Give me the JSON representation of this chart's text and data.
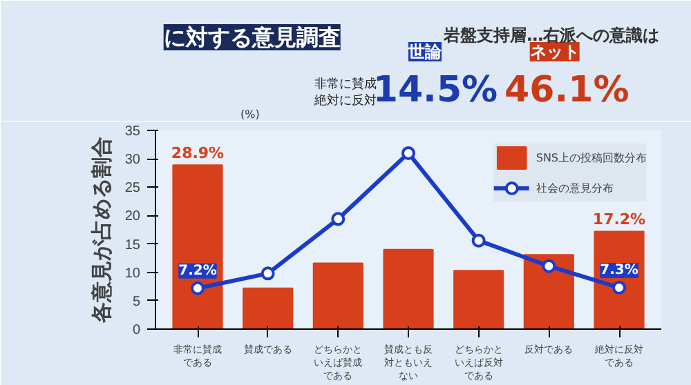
{
  "chart_data": {
    "type": "bar",
    "title": "に対する意見調査",
    "ylabel": "各意見が占める割合",
    "categories": [
      "非常に賛成である",
      "賛成である",
      "どちらかといえば賛成である",
      "賛成とも反対ともいえない",
      "どちらかといえば反対である",
      "反対である",
      "絶対に反対である"
    ],
    "series": [
      {
        "name": "SNS上の投稿回数分布",
        "color": "#d8401c",
        "values": [
          28.9,
          7.2,
          11.6,
          14.0,
          10.3,
          13.1,
          17.2
        ],
        "value_labels": [
          "28.9%",
          null,
          null,
          null,
          null,
          null,
          "17.2%"
        ]
      },
      {
        "name": "社会の意見分布",
        "type": "line",
        "color": "#1c3cc8",
        "marker": "circle",
        "values": [
          7.2,
          9.8,
          19.4,
          31.0,
          15.6,
          11.1,
          7.3
        ],
        "value_labels": [
          "7.2%",
          null,
          null,
          null,
          null,
          null,
          "7.3%"
        ]
      }
    ],
    "ylim": [
      0,
      35
    ],
    "yticks": [
      0,
      5,
      10,
      15,
      20,
      25,
      30,
      35
    ],
    "grid": false,
    "legend": "top right",
    "annotations": [
      "(%)",
      "世論",
      "ネット",
      "非常に賛成",
      "絶対に反対",
      "14.5%",
      "46.1%",
      "岩盤支持層…右派への意識は"
    ]
  }
}
